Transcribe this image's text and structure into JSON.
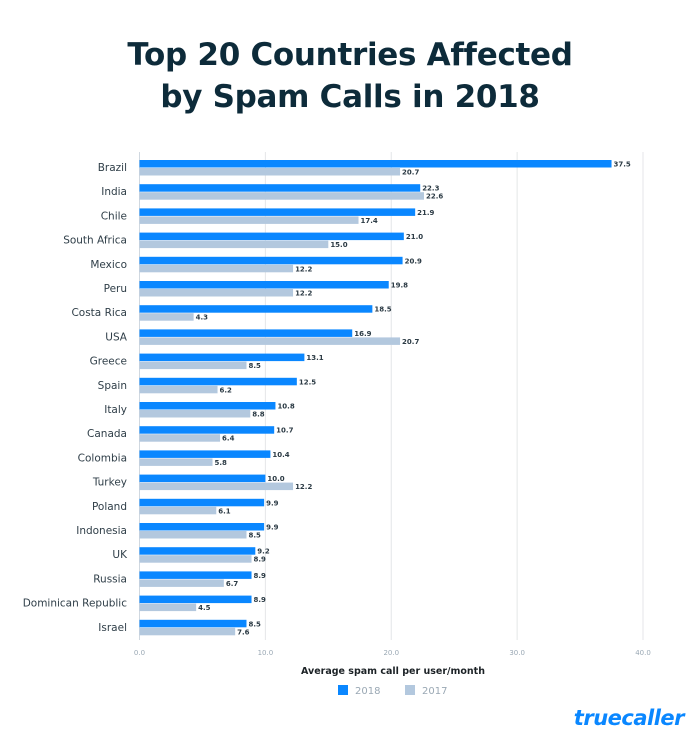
{
  "chart_data": {
    "type": "bar",
    "orientation": "horizontal",
    "title": "Top 20 Countries Affected by Spam Calls in 2018",
    "title_lines": [
      "Top 20 Countries Affected",
      "by Spam Calls in 2018"
    ],
    "xlabel": "Average spam call per user/month",
    "xlim": [
      0,
      40
    ],
    "xticks": [
      "0.0",
      "10.0",
      "20.0",
      "30.0",
      "40.0"
    ],
    "grid": true,
    "legend_placement": "bottom",
    "categories": [
      "Brazil",
      "India",
      "Chile",
      "South Africa",
      "Mexico",
      "Peru",
      "Costa Rica",
      "USA",
      "Greece",
      "Spain",
      "Italy",
      "Canada",
      "Colombia",
      "Turkey",
      "Poland",
      "Indonesia",
      "UK",
      "Russia",
      "Dominican Republic",
      "Israel"
    ],
    "series": [
      {
        "name": "2018",
        "color": "#0a87ff",
        "values": [
          37.5,
          22.3,
          21.9,
          21.0,
          20.9,
          19.8,
          18.5,
          16.9,
          13.1,
          12.5,
          10.8,
          10.7,
          10.4,
          10.0,
          9.9,
          9.9,
          9.2,
          8.9,
          8.9,
          8.5
        ]
      },
      {
        "name": "2017",
        "color": "#b3c8de",
        "values": [
          20.7,
          22.6,
          17.4,
          15.0,
          12.2,
          12.2,
          4.3,
          20.7,
          8.5,
          6.2,
          8.8,
          6.4,
          5.8,
          12.2,
          6.1,
          8.5,
          8.9,
          6.7,
          4.5,
          7.6
        ]
      }
    ]
  },
  "brand": {
    "logo_text": "truecaller",
    "color": "#0a87ff"
  }
}
